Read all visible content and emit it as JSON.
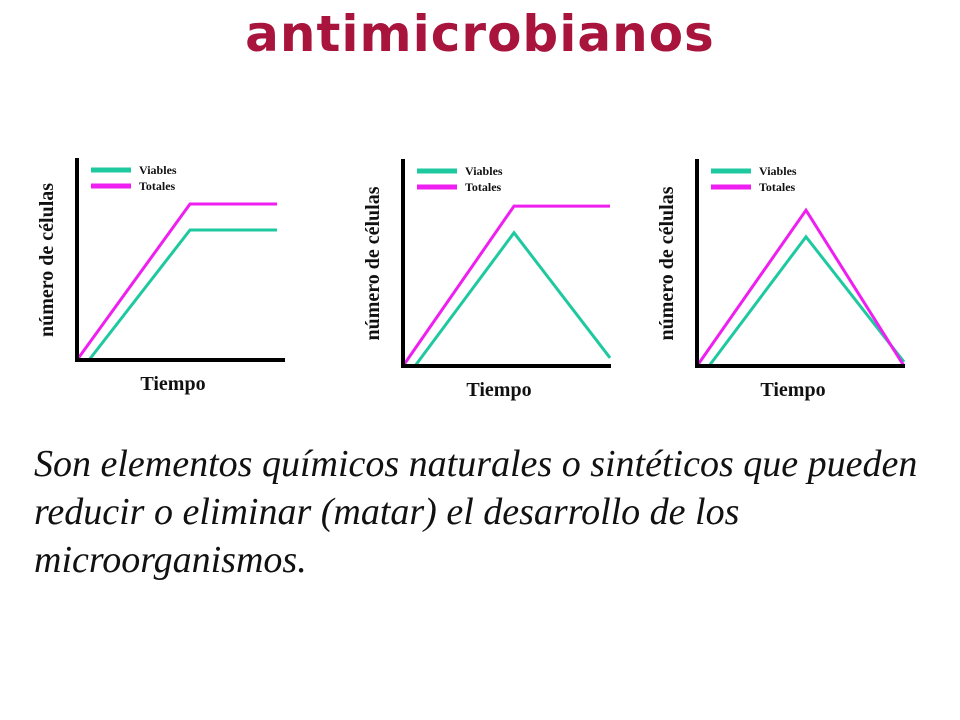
{
  "title": "antimicrobianos",
  "description": "Son elementos químicos naturales o sintéticos que pueden reducir o eliminar (matar) el desarrollo de los microorganismos.",
  "colors": {
    "title": "#a8143c",
    "viables": "#1fc9a0",
    "totales": "#ee1ff0",
    "axis": "#000000"
  },
  "chart_data": [
    {
      "type": "line",
      "xlabel": "Tiempo",
      "ylabel": "número de células",
      "legend_position": "top-left",
      "grid": false,
      "x": [
        0,
        1,
        2
      ],
      "series": [
        {
          "name": "Viables",
          "color": "#1fc9a0",
          "values": [
            0,
            65,
            65
          ]
        },
        {
          "name": "Totales",
          "color": "#ee1ff0",
          "values": [
            0,
            78,
            78
          ]
        }
      ],
      "xlim": [
        0,
        2
      ],
      "ylim": [
        0,
        100
      ]
    },
    {
      "type": "line",
      "xlabel": "Tiempo",
      "ylabel": "número de células",
      "legend_position": "top-left",
      "grid": false,
      "x": [
        0,
        1,
        2
      ],
      "series": [
        {
          "name": "Viables",
          "color": "#1fc9a0",
          "values": [
            0,
            65,
            4
          ]
        },
        {
          "name": "Totales",
          "color": "#ee1ff0",
          "values": [
            0,
            78,
            78
          ]
        }
      ],
      "xlim": [
        0,
        2
      ],
      "ylim": [
        0,
        100
      ]
    },
    {
      "type": "line",
      "xlabel": "Tiempo",
      "ylabel": "número de células",
      "legend_position": "top-left",
      "grid": false,
      "x": [
        0,
        1,
        2
      ],
      "series": [
        {
          "name": "Viables",
          "color": "#1fc9a0",
          "values": [
            0,
            63,
            2
          ]
        },
        {
          "name": "Totales",
          "color": "#ee1ff0",
          "values": [
            0,
            76,
            0
          ]
        }
      ],
      "xlim": [
        0,
        2
      ],
      "ylim": [
        0,
        100
      ]
    }
  ]
}
